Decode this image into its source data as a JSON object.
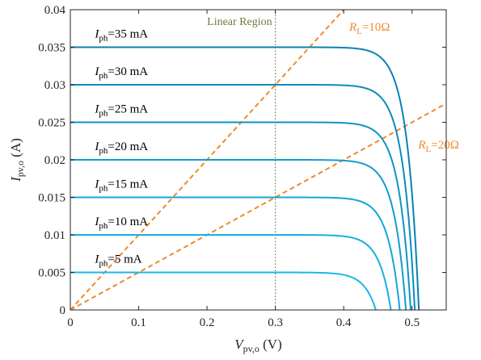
{
  "chart_data": {
    "type": "line",
    "title": "",
    "xlabel": {
      "main": "V",
      "sub": "pv,o",
      "unit": " (V)"
    },
    "ylabel": {
      "main": "I",
      "sub": "pv,o",
      "unit": " (A)"
    },
    "xlim": [
      0,
      0.55
    ],
    "ylim": [
      0,
      0.04
    ],
    "xticks": [
      0,
      0.1,
      0.2,
      0.3,
      0.4,
      0.5
    ],
    "xtick_labels": [
      "0",
      "0.1",
      "0.2",
      "0.3",
      "0.4",
      "0.5"
    ],
    "yticks": [
      0,
      0.005,
      0.01,
      0.015,
      0.02,
      0.025,
      0.03,
      0.035,
      0.04
    ],
    "ytick_labels": [
      "0",
      "0.005",
      "0.01",
      "0.015",
      "0.02",
      "0.025",
      "0.03",
      "0.035",
      "0.04"
    ],
    "grid": false,
    "series": [
      {
        "Iph": 0.005,
        "voc": 0.447,
        "label": {
          "main": "I",
          "sub": "ph",
          "text": "=5 mA"
        },
        "label_at": [
          0.036,
          0.0063
        ],
        "color": "#1ab8e8"
      },
      {
        "Iph": 0.01,
        "voc": 0.469,
        "label": {
          "main": "I",
          "sub": "ph",
          "text": "=10 mA"
        },
        "label_at": [
          0.036,
          0.0113
        ],
        "color": "#17afe0"
      },
      {
        "Iph": 0.015,
        "voc": 0.482,
        "label": {
          "main": "I",
          "sub": "ph",
          "text": "=15 mA"
        },
        "label_at": [
          0.036,
          0.0163
        ],
        "color": "#14a6d8"
      },
      {
        "Iph": 0.02,
        "voc": 0.491,
        "label": {
          "main": "I",
          "sub": "ph",
          "text": "=20 mA"
        },
        "label_at": [
          0.036,
          0.0213
        ],
        "color": "#119dcf"
      },
      {
        "Iph": 0.025,
        "voc": 0.498,
        "label": {
          "main": "I",
          "sub": "ph",
          "text": "=25 mA"
        },
        "label_at": [
          0.036,
          0.0263
        ],
        "color": "#0e94c6"
      },
      {
        "Iph": 0.03,
        "voc": 0.504,
        "label": {
          "main": "I",
          "sub": "ph",
          "text": "=30 mA"
        },
        "label_at": [
          0.036,
          0.0313
        ],
        "color": "#0b8bbd"
      },
      {
        "Iph": 0.035,
        "voc": 0.51,
        "label": {
          "main": "I",
          "sub": "ph",
          "text": "=35 mA"
        },
        "label_at": [
          0.036,
          0.0363
        ],
        "color": "#0882b4"
      }
    ],
    "load_lines": [
      {
        "RL": 10,
        "label": {
          "main": "R",
          "sub": "L",
          "text": "=10Ω"
        },
        "label_at": [
          0.408,
          0.0372
        ],
        "color": "#ee8a2a"
      },
      {
        "RL": 20,
        "label": {
          "main": "R",
          "sub": "L",
          "text": "=20Ω"
        },
        "label_at": [
          0.509,
          0.0215
        ],
        "color": "#ee8a2a"
      }
    ],
    "linear_region": {
      "x": 0.3,
      "label": "Linear Region",
      "label_at": [
        0.3,
        0.0384
      ],
      "color": "#6b7b3a"
    }
  }
}
